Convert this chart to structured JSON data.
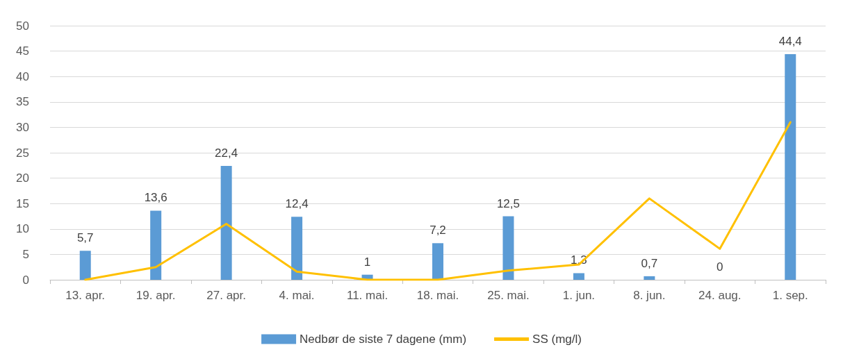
{
  "chart_data": {
    "type": "bar",
    "categories": [
      "13. apr.",
      "19. apr.",
      "27. apr.",
      "4. mai.",
      "11. mai.",
      "18. mai.",
      "25. mai.",
      "1. jun.",
      "8. jun.",
      "24. aug.",
      "1. sep."
    ],
    "series": [
      {
        "name": "Nedbør de siste 7 dagene (mm)",
        "color": "#5b9bd5",
        "values": [
          5.7,
          13.6,
          22.4,
          12.4,
          1,
          7.2,
          12.5,
          1.3,
          0.7,
          0,
          44.4
        ],
        "value_labels": [
          "5,7",
          "13,6",
          "22,4",
          "12,4",
          "1",
          "7,2",
          "12,5",
          "1,3",
          "0,7",
          "0",
          "44,4"
        ]
      },
      {
        "name": "SS (mg/l)",
        "type": "line",
        "color": "#ffc000",
        "values": [
          0,
          2.5,
          11,
          1.6,
          0,
          0,
          1.8,
          3,
          16,
          6.1,
          31
        ]
      }
    ],
    "ylim": [
      0,
      50
    ],
    "yticks": [
      0,
      5,
      10,
      15,
      20,
      25,
      30,
      35,
      40,
      45,
      50
    ],
    "grid": "y",
    "legend": "bottom",
    "marker": "none",
    "line_style": "solid"
  }
}
